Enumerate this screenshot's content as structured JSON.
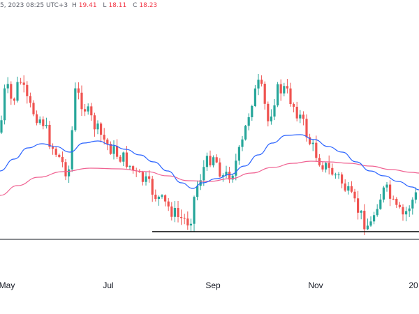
{
  "header": {
    "info": "5, 2023 08:25 UTC+3",
    "ohlc": [
      {
        "label": "H",
        "value": "19.41"
      },
      {
        "label": "L",
        "value": "18.11"
      },
      {
        "label": "C",
        "value": "18.23"
      }
    ]
  },
  "colors": {
    "up": "#26a69a",
    "down": "#ef5350",
    "ma_fast": "#2962ff",
    "ma_slow": "#f06292",
    "support": "#000000"
  },
  "chart_data": {
    "type": "candlestick",
    "x_tick_labels": [
      "May",
      "Jul",
      "Sep",
      "Nov",
      "20"
    ],
    "y_axis": "hidden",
    "grid": false,
    "overlays": [
      "moving-average-fast",
      "moving-average-slow",
      "support-line"
    ]
  }
}
